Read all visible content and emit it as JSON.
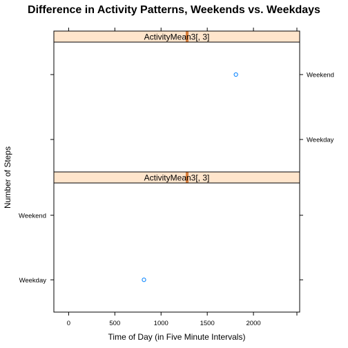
{
  "chart_data": {
    "type": "scatter",
    "title": "Difference in Activity Patterns, Weekends vs. Weekdays",
    "xlabel": "Time of Day (in Five Minute Intervals)",
    "ylabel": "Number of Steps",
    "xlim": [
      -160,
      2500
    ],
    "x_ticks": [
      0,
      500,
      1000,
      1500,
      2000
    ],
    "y_categories": [
      "Weekday",
      "Weekend"
    ],
    "grid": false,
    "colors": {
      "point": "#0080ff",
      "strip_bg": "#ffe5cc",
      "strip_marker": "#d97d3a",
      "frame": "#000000"
    },
    "panels": [
      {
        "strip_label": "ActivityMean3[, 3]",
        "strip_level_fraction": 0.5,
        "points": [
          {
            "x": 1810,
            "y": "Weekend"
          }
        ]
      },
      {
        "strip_label": "ActivityMean3[, 3]",
        "strip_level_fraction": 0.5,
        "points": [
          {
            "x": 815,
            "y": "Weekday"
          }
        ]
      }
    ]
  }
}
